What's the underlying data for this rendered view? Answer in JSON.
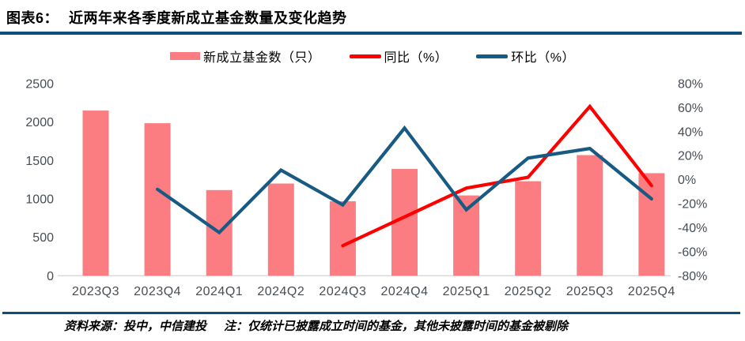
{
  "header": {
    "figure_label": "图表6：",
    "title": "近两年来各季度新成立基金数量及变化趋势"
  },
  "chart_data": {
    "type": "bar",
    "subtype": "combo-bar-line-dual-axis",
    "categories": [
      "2023Q3",
      "2023Q4",
      "2024Q1",
      "2024Q2",
      "2024Q3",
      "2024Q4",
      "2025Q1",
      "2025Q2",
      "2025Q3",
      "2025Q4"
    ],
    "series": [
      {
        "name": "新成立基金数（只）",
        "type": "bar",
        "axis": "left",
        "color": "#FB7D81",
        "values": [
          2150,
          1985,
          1115,
          1200,
          970,
          1390,
          1045,
          1230,
          1570,
          1335
        ]
      },
      {
        "name": "同比（%）",
        "type": "line",
        "axis": "right",
        "color": "#FE0000",
        "values": [
          null,
          null,
          null,
          null,
          -55,
          -31,
          -7,
          2,
          61,
          -5
        ]
      },
      {
        "name": "环比（%）",
        "type": "line",
        "axis": "right",
        "color": "#175A83",
        "values": [
          null,
          -8,
          -44,
          8,
          -21,
          43,
          -25,
          18,
          26,
          -16
        ]
      }
    ],
    "left_axis": {
      "min": 0,
      "max": 2500,
      "step": 500,
      "tick_labels": [
        "0",
        "500",
        "1000",
        "1500",
        "2000",
        "2500"
      ]
    },
    "right_axis": {
      "min": -80,
      "max": 80,
      "step": 20,
      "tick_labels": [
        "-80%",
        "-60%",
        "-40%",
        "-20%",
        "0%",
        "20%",
        "40%",
        "60%",
        "80%"
      ]
    },
    "grid": false,
    "legend_position": "top"
  },
  "colors": {
    "accent_rule": "#0E4E7D",
    "axis_text": "#474D55",
    "axis_line": "#C8C8C8"
  },
  "footer": {
    "source": "资料来源：投中，中信建投",
    "note": "注：仅统计已披露成立时间的基金，其他未披露时间的基金被剔除"
  }
}
